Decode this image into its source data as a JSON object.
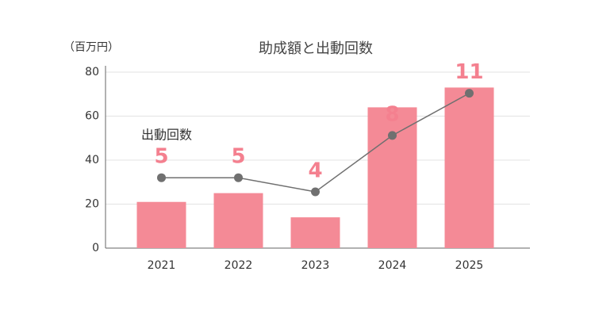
{
  "chart_data": {
    "type": "bar-line",
    "title": "助成額と出動回数",
    "y_label": "（百万円）",
    "categories": [
      "2021",
      "2022",
      "2023",
      "2024",
      "2025"
    ],
    "series": [
      {
        "type": "bar",
        "color": "#f48a96",
        "values": [
          21,
          25,
          14,
          64,
          73
        ]
      },
      {
        "type": "line",
        "name": "出動回数",
        "color": "#707070",
        "label_color": "#f4808f",
        "axis": "y2",
        "values": [
          5,
          5,
          4,
          8,
          11
        ]
      }
    ],
    "ylim": [
      0,
      80
    ],
    "yticks": [
      0,
      20,
      40,
      60,
      80
    ],
    "y2lim": [
      0,
      12.5
    ],
    "grid": true
  }
}
